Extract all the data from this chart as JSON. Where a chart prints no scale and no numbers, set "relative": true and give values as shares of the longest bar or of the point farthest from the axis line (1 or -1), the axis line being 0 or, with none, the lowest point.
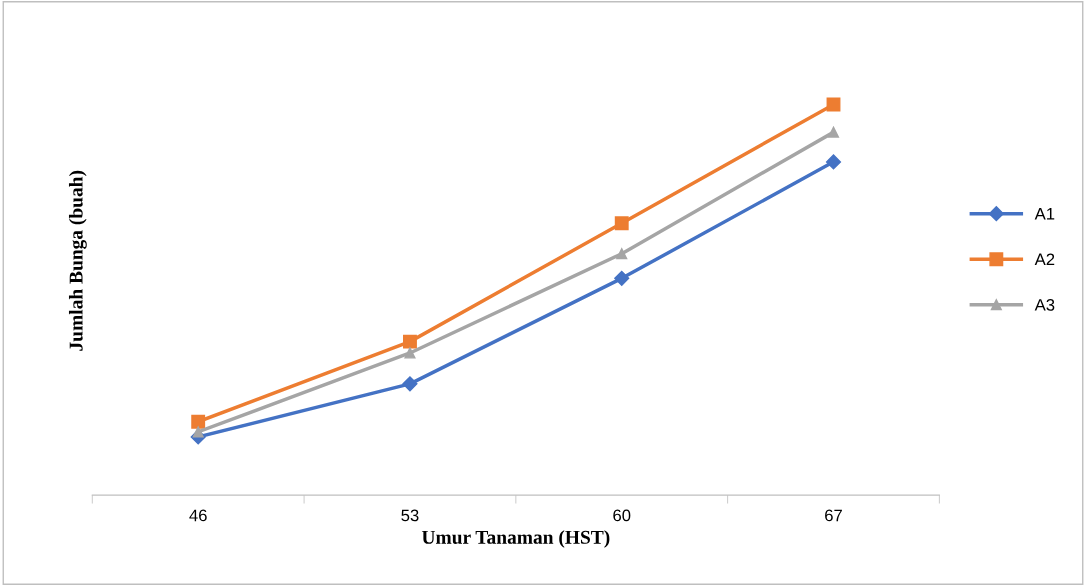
{
  "chart_data": {
    "type": "line",
    "xlabel": "Umur Tanaman (HST)",
    "ylabel": "Jumlah Bunga (buah)",
    "categories": [
      "46",
      "53",
      "60",
      "67"
    ],
    "relative": true,
    "legend": "right",
    "grid": false,
    "series": [
      {
        "name": "A1",
        "color": "#4472c4",
        "marker": "diamond",
        "values": [
          0.149,
          0.285,
          0.555,
          0.853
        ]
      },
      {
        "name": "A2",
        "color": "#ed7d31",
        "marker": "square",
        "values": [
          0.188,
          0.393,
          0.696,
          1.0
        ]
      },
      {
        "name": "A3",
        "color": "#a5a5a5",
        "marker": "triangle",
        "values": [
          0.162,
          0.364,
          0.618,
          0.929
        ]
      }
    ]
  }
}
